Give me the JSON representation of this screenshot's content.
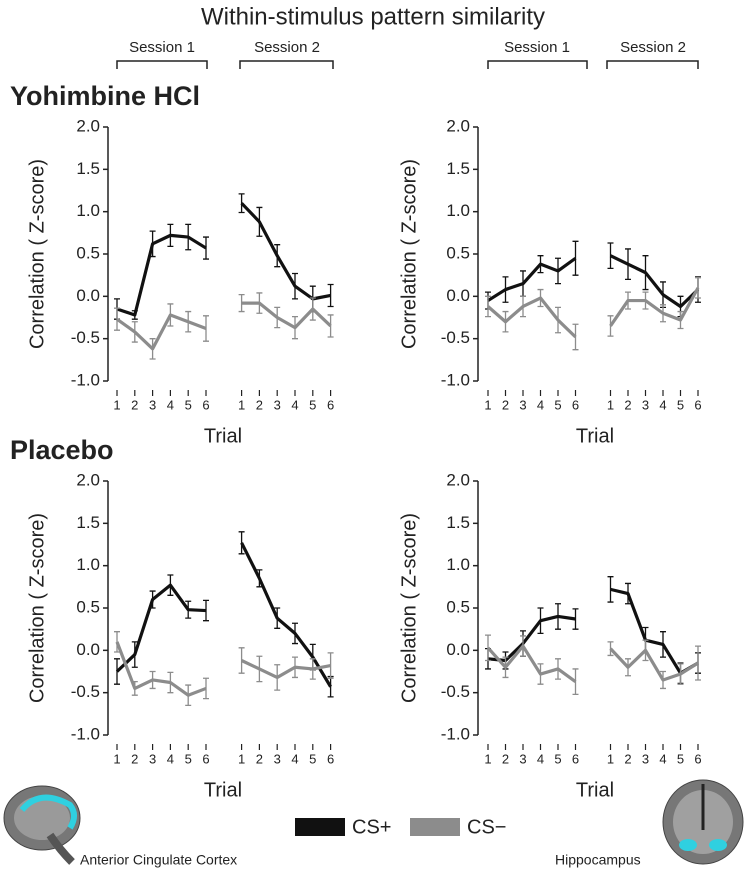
{
  "title": "Within-stimulus pattern similarity",
  "sessions": [
    "Session 1",
    "Session 2"
  ],
  "groups": [
    "Yohimbine HCl",
    "Placebo"
  ],
  "regions": [
    "Anterior Cingulate Cortex",
    "Hippocampus"
  ],
  "chart_data": [
    {
      "type": "line",
      "ylabel": "Correlation ( Z-score)",
      "xlabel": "Trial",
      "categories": [
        "1",
        "2",
        "3",
        "4",
        "5",
        "6",
        null,
        "1",
        "2",
        "3",
        "4",
        "5",
        "6"
      ],
      "ylim": [
        -1,
        2
      ],
      "yticks": [
        {
          "value": -1,
          "label": "-1.0"
        },
        {
          "value": -0.5,
          "label": "-0.5"
        },
        {
          "value": 0,
          "label": "0.0"
        },
        {
          "value": 0.5,
          "label": "0.5"
        },
        {
          "value": 1,
          "label": "1.0"
        },
        {
          "value": 1.5,
          "label": "1.5"
        },
        {
          "value": 2,
          "label": "2.0"
        }
      ],
      "series": [
        {
          "name": "CS+",
          "color": "#111111",
          "values": [
            -0.15,
            -0.22,
            0.62,
            0.72,
            0.7,
            0.57,
            null,
            1.1,
            0.88,
            0.48,
            0.12,
            -0.03,
            0.01
          ],
          "errors": [
            0.12,
            0.05,
            0.15,
            0.13,
            0.15,
            0.13,
            null,
            0.11,
            0.17,
            0.13,
            0.15,
            0.15,
            0.13
          ]
        },
        {
          "name": "CS−",
          "color": "#8c8c8c",
          "values": [
            -0.27,
            -0.42,
            -0.62,
            -0.22,
            -0.3,
            -0.38,
            null,
            -0.08,
            -0.08,
            -0.25,
            -0.37,
            -0.15,
            -0.35
          ],
          "errors": [
            0.13,
            0.12,
            0.12,
            0.13,
            0.12,
            0.15,
            null,
            0.1,
            0.12,
            0.12,
            0.13,
            0.13,
            0.13
          ]
        }
      ]
    },
    {
      "type": "line",
      "ylabel": "Correlation ( Z-score)",
      "xlabel": "Trial",
      "categories": [
        "1",
        "2",
        "3",
        "4",
        "5",
        "6",
        null,
        "1",
        "2",
        "3",
        "4",
        "5",
        "6"
      ],
      "ylim": [
        -1,
        2
      ],
      "yticks": [
        {
          "value": -1,
          "label": "-1.0"
        },
        {
          "value": -0.5,
          "label": "-0.5"
        },
        {
          "value": 0,
          "label": "0.0"
        },
        {
          "value": 0.5,
          "label": "0.5"
        },
        {
          "value": 1,
          "label": "1.0"
        },
        {
          "value": 1.5,
          "label": "1.5"
        },
        {
          "value": 2,
          "label": "2.0"
        }
      ],
      "series": [
        {
          "name": "CS+",
          "color": "#111111",
          "values": [
            -0.05,
            0.08,
            0.15,
            0.38,
            0.3,
            0.45,
            null,
            0.48,
            0.38,
            0.28,
            0.02,
            -0.12,
            0.08
          ],
          "errors": [
            0.1,
            0.15,
            0.15,
            0.1,
            0.15,
            0.2,
            null,
            0.15,
            0.18,
            0.2,
            0.15,
            0.12,
            0.15
          ]
        },
        {
          "name": "CS−",
          "color": "#8c8c8c",
          "values": [
            -0.12,
            -0.3,
            -0.12,
            -0.02,
            -0.28,
            -0.48,
            null,
            -0.35,
            -0.05,
            -0.05,
            -0.2,
            -0.28,
            0.1
          ],
          "errors": [
            0.12,
            0.12,
            0.12,
            0.1,
            0.15,
            0.15,
            null,
            0.12,
            0.1,
            0.1,
            0.1,
            0.1,
            0.12
          ]
        }
      ]
    },
    {
      "type": "line",
      "ylabel": "Correlation ( Z-score)",
      "xlabel": "Trial",
      "categories": [
        "1",
        "2",
        "3",
        "4",
        "5",
        "6",
        null,
        "1",
        "2",
        "3",
        "4",
        "5",
        "6"
      ],
      "ylim": [
        -1,
        2
      ],
      "yticks": [
        {
          "value": -1,
          "label": "-1.0"
        },
        {
          "value": -0.5,
          "label": "-0.5"
        },
        {
          "value": 0,
          "label": "0.0"
        },
        {
          "value": 0.5,
          "label": "0.5"
        },
        {
          "value": 1,
          "label": "1.0"
        },
        {
          "value": 1.5,
          "label": "1.5"
        },
        {
          "value": 2,
          "label": "2.0"
        }
      ],
      "series": [
        {
          "name": "CS+",
          "color": "#111111",
          "values": [
            -0.25,
            -0.05,
            0.6,
            0.77,
            0.48,
            0.47,
            null,
            1.27,
            0.85,
            0.38,
            0.2,
            -0.08,
            -0.43
          ],
          "errors": [
            0.15,
            0.15,
            0.1,
            0.12,
            0.1,
            0.12,
            null,
            0.13,
            0.1,
            0.12,
            0.12,
            0.15,
            0.12
          ]
        },
        {
          "name": "CS−",
          "color": "#8c8c8c",
          "values": [
            0.1,
            -0.45,
            -0.35,
            -0.38,
            -0.53,
            -0.45,
            null,
            -0.12,
            -0.22,
            -0.32,
            -0.2,
            -0.22,
            -0.18
          ],
          "errors": [
            0.12,
            0.08,
            0.1,
            0.12,
            0.12,
            0.12,
            null,
            0.15,
            0.15,
            0.15,
            0.12,
            0.12,
            0.15
          ]
        }
      ]
    },
    {
      "type": "line",
      "ylabel": "Correlation ( Z-score)",
      "xlabel": "Trial",
      "categories": [
        "1",
        "2",
        "3",
        "4",
        "5",
        "6",
        null,
        "1",
        "2",
        "3",
        "4",
        "5",
        "6"
      ],
      "ylim": [
        -1,
        2
      ],
      "yticks": [
        {
          "value": -1,
          "label": "-1.0"
        },
        {
          "value": -0.5,
          "label": "-0.5"
        },
        {
          "value": 0,
          "label": "0.0"
        },
        {
          "value": 0.5,
          "label": "0.5"
        },
        {
          "value": 1,
          "label": "1.0"
        },
        {
          "value": 1.5,
          "label": "1.5"
        },
        {
          "value": 2,
          "label": "2.0"
        }
      ],
      "series": [
        {
          "name": "CS+",
          "color": "#111111",
          "values": [
            -0.1,
            -0.12,
            0.08,
            0.35,
            0.4,
            0.37,
            null,
            0.72,
            0.67,
            0.12,
            0.07,
            -0.27,
            -0.15
          ],
          "errors": [
            0.12,
            0.1,
            0.15,
            0.15,
            0.15,
            0.12,
            null,
            0.15,
            0.12,
            0.15,
            0.15,
            0.12,
            0.12
          ]
        },
        {
          "name": "CS−",
          "color": "#8c8c8c",
          "values": [
            0.03,
            -0.2,
            0.05,
            -0.28,
            -0.22,
            -0.37,
            null,
            0.02,
            -0.2,
            0.0,
            -0.35,
            -0.28,
            -0.15
          ],
          "errors": [
            0.15,
            0.12,
            0.12,
            0.12,
            0.12,
            0.15,
            null,
            0.08,
            0.1,
            0.12,
            0.1,
            0.12,
            0.2
          ]
        }
      ]
    }
  ]
}
